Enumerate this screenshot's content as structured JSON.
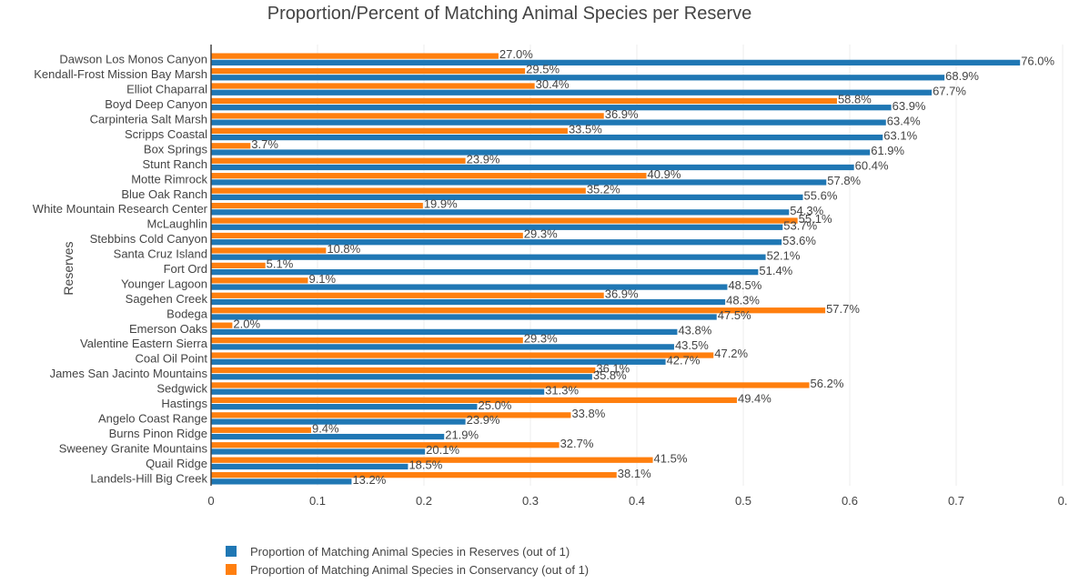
{
  "chart_data": {
    "type": "bar",
    "orientation": "horizontal",
    "title": "Proportion/Percent of Matching Animal Species per Reserve",
    "ylabel": "Reserves",
    "xlabel": "",
    "xlim": [
      0,
      0.8
    ],
    "x_ticks": [
      "0",
      "0.1",
      "0.2",
      "0.3",
      "0.4",
      "0.5",
      "0.6",
      "0.7",
      "0."
    ],
    "grid": true,
    "legend_position": "bottom-left",
    "categories": [
      "Landels-Hill Big Creek",
      "Quail Ridge",
      "Sweeney Granite Mountains",
      "Burns Pinon Ridge",
      "Angelo Coast Range",
      "Hastings",
      "Sedgwick",
      "James San Jacinto Mountains",
      "Coal Oil Point",
      "Valentine Eastern Sierra",
      "Emerson Oaks",
      "Bodega",
      "Sagehen Creek",
      "Younger Lagoon",
      "Fort Ord",
      "Santa Cruz Island",
      "Stebbins Cold Canyon",
      "McLaughlin",
      "White Mountain Research Center",
      "Blue Oak Ranch",
      "Motte Rimrock",
      "Stunt Ranch",
      "Box Springs",
      "Scripps Coastal",
      "Carpinteria Salt Marsh",
      "Boyd Deep Canyon",
      "Elliot Chaparral",
      "Kendall-Frost Mission Bay Marsh",
      "Dawson Los Monos Canyon"
    ],
    "series": [
      {
        "name": "Proportion of Matching Animal Species in Reserves (out of 1)",
        "color": "#1f77b4",
        "values": [
          0.132,
          0.185,
          0.201,
          0.219,
          0.239,
          0.25,
          0.313,
          0.358,
          0.427,
          0.435,
          0.438,
          0.475,
          0.483,
          0.485,
          0.514,
          0.521,
          0.536,
          0.537,
          0.543,
          0.556,
          0.578,
          0.604,
          0.619,
          0.631,
          0.634,
          0.639,
          0.677,
          0.689,
          0.76
        ],
        "labels": [
          "13.2%",
          "18.5%",
          "20.1%",
          "21.9%",
          "23.9%",
          "25.0%",
          "31.3%",
          "35.8%",
          "42.7%",
          "43.5%",
          "43.8%",
          "47.5%",
          "48.3%",
          "48.5%",
          "51.4%",
          "52.1%",
          "53.6%",
          "53.7%",
          "54.3%",
          "55.6%",
          "57.8%",
          "60.4%",
          "61.9%",
          "63.1%",
          "63.4%",
          "63.9%",
          "67.7%",
          "68.9%",
          "76.0%"
        ]
      },
      {
        "name": "Proportion of Matching Animal Species in Conservancy (out of 1)",
        "color": "#ff7f0e",
        "values": [
          0.381,
          0.415,
          0.327,
          0.094,
          0.338,
          0.494,
          0.562,
          0.361,
          0.472,
          0.293,
          0.02,
          0.577,
          0.369,
          0.091,
          0.051,
          0.108,
          0.293,
          0.551,
          0.199,
          0.352,
          0.409,
          0.239,
          0.037,
          0.335,
          0.369,
          0.588,
          0.304,
          0.295,
          0.27
        ],
        "labels": [
          "38.1%",
          "41.5%",
          "32.7%",
          "9.4%",
          "33.8%",
          "49.4%",
          "56.2%",
          "36.1%",
          "47.2%",
          "29.3%",
          "2.0%",
          "57.7%",
          "36.9%",
          "9.1%",
          "5.1%",
          "10.8%",
          "29.3%",
          "55.1%",
          "19.9%",
          "35.2%",
          "40.9%",
          "23.9%",
          "3.7%",
          "33.5%",
          "36.9%",
          "58.8%",
          "30.4%",
          "29.5%",
          "27.0%"
        ]
      }
    ]
  }
}
